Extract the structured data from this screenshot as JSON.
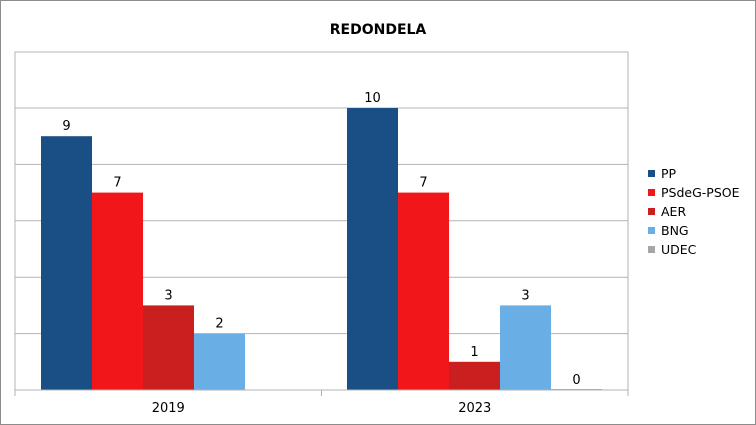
{
  "chart_data": {
    "type": "bar",
    "title": "REDONDELA",
    "xlabel": "",
    "ylabel": "",
    "ylim": [
      0,
      10
    ],
    "grid": true,
    "legend_position": "right",
    "categories": [
      "2019",
      "2023"
    ],
    "series": [
      {
        "name": "PP",
        "color": "#1a4f86",
        "values": [
          9,
          10
        ]
      },
      {
        "name": "PSdeG-PSOE",
        "color": "#f0161a",
        "values": [
          7,
          7
        ]
      },
      {
        "name": "AER",
        "color": "#c9201f",
        "values": [
          3,
          1
        ]
      },
      {
        "name": "BNG",
        "color": "#6aaee6",
        "values": [
          2,
          3
        ]
      },
      {
        "name": "UDEC",
        "color": "#a6a6a6",
        "values": [
          null,
          0
        ]
      }
    ]
  }
}
